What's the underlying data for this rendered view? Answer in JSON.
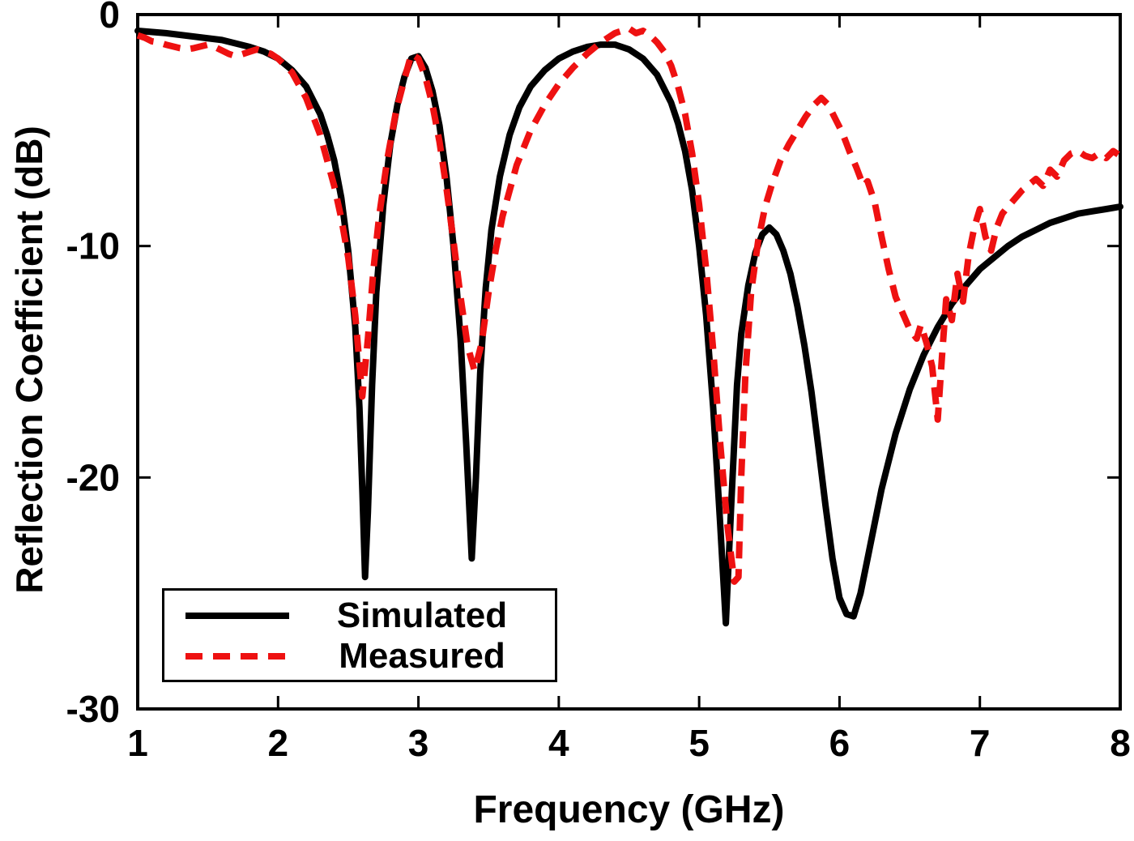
{
  "chart_data": {
    "type": "line",
    "title": "",
    "xlabel": "Frequency (GHz)",
    "ylabel": "Reflection Coefficient (dB)",
    "xlim": [
      1,
      8
    ],
    "ylim": [
      -30,
      0
    ],
    "x_ticks": [
      1,
      2,
      3,
      4,
      5,
      6,
      7,
      8
    ],
    "y_ticks": [
      0,
      -10,
      -20,
      -30
    ],
    "grid": false,
    "legend_position": "bottom-left",
    "axis_color": "#000000",
    "background_color": "#ffffff",
    "series": [
      {
        "name": "Simulated",
        "color": "#000000",
        "style": "solid",
        "line_width": 8,
        "points": [
          [
            1.0,
            -0.7
          ],
          [
            1.2,
            -0.8
          ],
          [
            1.4,
            -0.95
          ],
          [
            1.6,
            -1.1
          ],
          [
            1.8,
            -1.4
          ],
          [
            1.9,
            -1.6
          ],
          [
            2.0,
            -1.9
          ],
          [
            2.1,
            -2.4
          ],
          [
            2.2,
            -3.1
          ],
          [
            2.3,
            -4.3
          ],
          [
            2.35,
            -5.2
          ],
          [
            2.4,
            -6.3
          ],
          [
            2.45,
            -7.9
          ],
          [
            2.5,
            -10.2
          ],
          [
            2.55,
            -13.5
          ],
          [
            2.58,
            -17.0
          ],
          [
            2.6,
            -20.5
          ],
          [
            2.62,
            -24.3
          ],
          [
            2.64,
            -21.5
          ],
          [
            2.67,
            -16.0
          ],
          [
            2.7,
            -12.0
          ],
          [
            2.75,
            -8.2
          ],
          [
            2.8,
            -5.6
          ],
          [
            2.85,
            -3.9
          ],
          [
            2.9,
            -2.7
          ],
          [
            2.95,
            -1.9
          ],
          [
            3.0,
            -1.8
          ],
          [
            3.05,
            -2.3
          ],
          [
            3.1,
            -3.3
          ],
          [
            3.15,
            -4.8
          ],
          [
            3.2,
            -7.0
          ],
          [
            3.25,
            -10.0
          ],
          [
            3.3,
            -14.0
          ],
          [
            3.34,
            -18.5
          ],
          [
            3.38,
            -23.5
          ],
          [
            3.41,
            -20.0
          ],
          [
            3.44,
            -15.5
          ],
          [
            3.48,
            -11.8
          ],
          [
            3.52,
            -9.3
          ],
          [
            3.58,
            -7.0
          ],
          [
            3.65,
            -5.2
          ],
          [
            3.72,
            -4.0
          ],
          [
            3.8,
            -3.1
          ],
          [
            3.9,
            -2.4
          ],
          [
            4.0,
            -1.9
          ],
          [
            4.1,
            -1.6
          ],
          [
            4.2,
            -1.4
          ],
          [
            4.3,
            -1.3
          ],
          [
            4.4,
            -1.3
          ],
          [
            4.5,
            -1.5
          ],
          [
            4.6,
            -1.9
          ],
          [
            4.7,
            -2.6
          ],
          [
            4.8,
            -3.8
          ],
          [
            4.85,
            -4.7
          ],
          [
            4.9,
            -5.9
          ],
          [
            4.95,
            -7.6
          ],
          [
            5.0,
            -10.0
          ],
          [
            5.05,
            -13.0
          ],
          [
            5.1,
            -17.0
          ],
          [
            5.15,
            -22.0
          ],
          [
            5.19,
            -26.3
          ],
          [
            5.23,
            -21.0
          ],
          [
            5.27,
            -16.0
          ],
          [
            5.3,
            -13.8
          ],
          [
            5.35,
            -11.7
          ],
          [
            5.4,
            -10.3
          ],
          [
            5.45,
            -9.5
          ],
          [
            5.5,
            -9.2
          ],
          [
            5.55,
            -9.5
          ],
          [
            5.6,
            -10.2
          ],
          [
            5.65,
            -11.2
          ],
          [
            5.7,
            -12.6
          ],
          [
            5.75,
            -14.3
          ],
          [
            5.8,
            -16.3
          ],
          [
            5.85,
            -18.7
          ],
          [
            5.9,
            -21.2
          ],
          [
            5.95,
            -23.5
          ],
          [
            6.0,
            -25.2
          ],
          [
            6.05,
            -25.9
          ],
          [
            6.1,
            -26.0
          ],
          [
            6.15,
            -25.0
          ],
          [
            6.2,
            -23.5
          ],
          [
            6.3,
            -20.5
          ],
          [
            6.4,
            -18.1
          ],
          [
            6.5,
            -16.2
          ],
          [
            6.6,
            -14.7
          ],
          [
            6.7,
            -13.5
          ],
          [
            6.8,
            -12.5
          ],
          [
            6.9,
            -11.7
          ],
          [
            7.0,
            -11.0
          ],
          [
            7.1,
            -10.5
          ],
          [
            7.2,
            -10.0
          ],
          [
            7.3,
            -9.6
          ],
          [
            7.4,
            -9.3
          ],
          [
            7.5,
            -9.0
          ],
          [
            7.6,
            -8.8
          ],
          [
            7.7,
            -8.6
          ],
          [
            7.8,
            -8.5
          ],
          [
            7.9,
            -8.4
          ],
          [
            8.0,
            -8.3
          ]
        ]
      },
      {
        "name": "Measured",
        "color": "#ee1111",
        "style": "dashed",
        "line_width": 8,
        "points": [
          [
            1.0,
            -0.9
          ],
          [
            1.05,
            -1.0
          ],
          [
            1.1,
            -1.15
          ],
          [
            1.15,
            -1.2
          ],
          [
            1.2,
            -1.3
          ],
          [
            1.3,
            -1.45
          ],
          [
            1.35,
            -1.5
          ],
          [
            1.4,
            -1.45
          ],
          [
            1.5,
            -1.3
          ],
          [
            1.55,
            -1.4
          ],
          [
            1.6,
            -1.55
          ],
          [
            1.65,
            -1.7
          ],
          [
            1.7,
            -1.8
          ],
          [
            1.75,
            -1.7
          ],
          [
            1.8,
            -1.6
          ],
          [
            1.85,
            -1.5
          ],
          [
            1.9,
            -1.6
          ],
          [
            1.95,
            -1.7
          ],
          [
            2.0,
            -1.9
          ],
          [
            2.1,
            -2.5
          ],
          [
            2.2,
            -3.6
          ],
          [
            2.3,
            -5.2
          ],
          [
            2.4,
            -7.4
          ],
          [
            2.45,
            -8.8
          ],
          [
            2.5,
            -10.5
          ],
          [
            2.55,
            -13.0
          ],
          [
            2.6,
            -16.5
          ],
          [
            2.64,
            -14.0
          ],
          [
            2.68,
            -11.0
          ],
          [
            2.72,
            -8.7
          ],
          [
            2.78,
            -6.2
          ],
          [
            2.84,
            -4.2
          ],
          [
            2.9,
            -2.8
          ],
          [
            2.95,
            -1.7
          ],
          [
            3.0,
            -1.9
          ],
          [
            3.05,
            -2.7
          ],
          [
            3.1,
            -3.9
          ],
          [
            3.15,
            -5.5
          ],
          [
            3.2,
            -7.5
          ],
          [
            3.25,
            -9.8
          ],
          [
            3.3,
            -12.2
          ],
          [
            3.35,
            -14.3
          ],
          [
            3.4,
            -15.4
          ],
          [
            3.45,
            -14.2
          ],
          [
            3.5,
            -12.0
          ],
          [
            3.55,
            -10.2
          ],
          [
            3.6,
            -8.7
          ],
          [
            3.7,
            -6.5
          ],
          [
            3.8,
            -5.0
          ],
          [
            3.9,
            -3.9
          ],
          [
            4.0,
            -3.0
          ],
          [
            4.1,
            -2.3
          ],
          [
            4.2,
            -1.7
          ],
          [
            4.3,
            -1.2
          ],
          [
            4.4,
            -0.8
          ],
          [
            4.5,
            -0.6
          ],
          [
            4.55,
            -0.8
          ],
          [
            4.6,
            -0.7
          ],
          [
            4.65,
            -0.9
          ],
          [
            4.7,
            -1.2
          ],
          [
            4.75,
            -1.6
          ],
          [
            4.8,
            -2.2
          ],
          [
            4.85,
            -3.1
          ],
          [
            4.9,
            -4.3
          ],
          [
            4.95,
            -6.0
          ],
          [
            5.0,
            -8.2
          ],
          [
            5.05,
            -11.0
          ],
          [
            5.1,
            -14.5
          ],
          [
            5.15,
            -18.5
          ],
          [
            5.2,
            -22.0
          ],
          [
            5.25,
            -24.5
          ],
          [
            5.28,
            -24.3
          ],
          [
            5.3,
            -20.0
          ],
          [
            5.33,
            -15.5
          ],
          [
            5.37,
            -12.0
          ],
          [
            5.42,
            -9.8
          ],
          [
            5.47,
            -8.3
          ],
          [
            5.52,
            -7.3
          ],
          [
            5.58,
            -6.3
          ],
          [
            5.64,
            -5.6
          ],
          [
            5.7,
            -5.0
          ],
          [
            5.76,
            -4.4
          ],
          [
            5.82,
            -3.9
          ],
          [
            5.87,
            -3.6
          ],
          [
            5.92,
            -3.9
          ],
          [
            5.97,
            -4.5
          ],
          [
            6.02,
            -5.1
          ],
          [
            6.07,
            -5.9
          ],
          [
            6.12,
            -6.6
          ],
          [
            6.17,
            -7.4
          ],
          [
            6.2,
            -7.2
          ],
          [
            6.25,
            -8.1
          ],
          [
            6.3,
            -9.6
          ],
          [
            6.35,
            -11.0
          ],
          [
            6.4,
            -12.2
          ],
          [
            6.45,
            -12.9
          ],
          [
            6.5,
            -13.6
          ],
          [
            6.55,
            -14.0
          ],
          [
            6.58,
            -13.4
          ],
          [
            6.62,
            -14.2
          ],
          [
            6.66,
            -15.2
          ],
          [
            6.7,
            -17.5
          ],
          [
            6.73,
            -14.8
          ],
          [
            6.76,
            -12.3
          ],
          [
            6.8,
            -13.2
          ],
          [
            6.84,
            -11.2
          ],
          [
            6.88,
            -12.4
          ],
          [
            6.92,
            -10.4
          ],
          [
            6.96,
            -9.2
          ],
          [
            7.0,
            -8.4
          ],
          [
            7.04,
            -9.6
          ],
          [
            7.08,
            -10.2
          ],
          [
            7.12,
            -9.2
          ],
          [
            7.16,
            -8.6
          ],
          [
            7.2,
            -8.3
          ],
          [
            7.3,
            -7.6
          ],
          [
            7.4,
            -7.1
          ],
          [
            7.45,
            -7.4
          ],
          [
            7.5,
            -6.7
          ],
          [
            7.55,
            -7.0
          ],
          [
            7.6,
            -6.3
          ],
          [
            7.65,
            -6.0
          ],
          [
            7.7,
            -5.9
          ],
          [
            7.75,
            -6.1
          ],
          [
            7.8,
            -6.2
          ],
          [
            7.85,
            -6.0
          ],
          [
            7.9,
            -6.2
          ],
          [
            7.95,
            -5.9
          ],
          [
            8.0,
            -6.1
          ]
        ]
      }
    ]
  }
}
